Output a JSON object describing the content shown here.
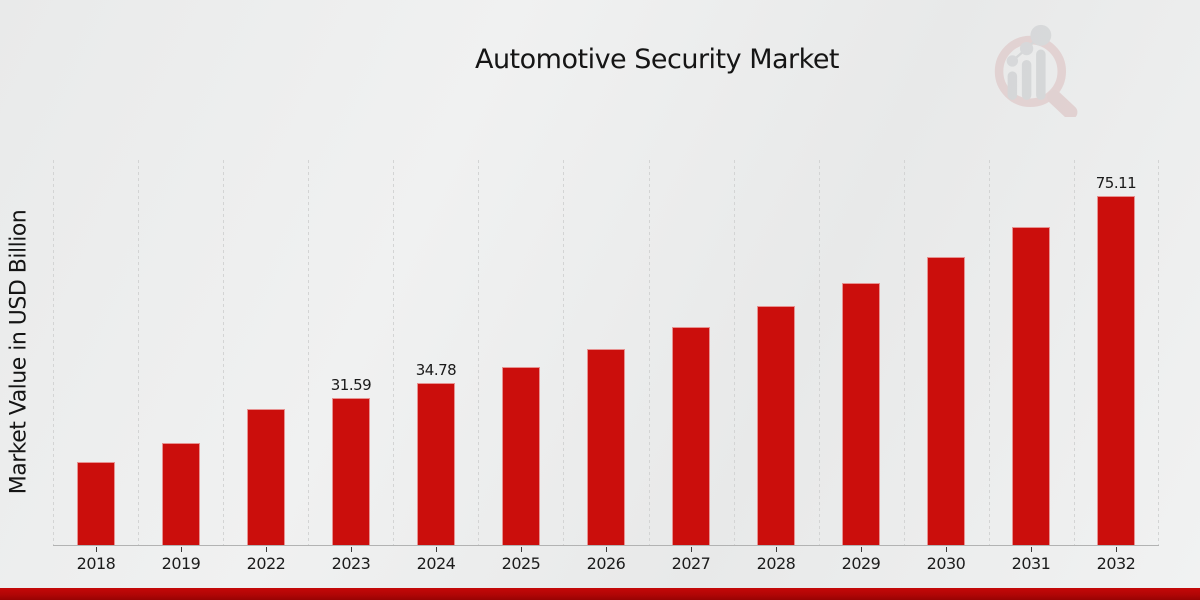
{
  "title": "Automotive Security Market",
  "y_axis_label": "Market Value in USD Billion",
  "branding": {
    "logo_icon": "market-research-future-magnifier-chart-watermark"
  },
  "colors": {
    "bar": "#cb0e0c",
    "bottom_strip": "#b10606",
    "gridline": "#d3d4d4",
    "axis_line": "#b2b3b3",
    "text": "#1a1a1a",
    "background": "#eceded"
  },
  "chart_data": {
    "type": "bar",
    "title": "Automotive Security Market",
    "xlabel": "",
    "ylabel": "Market Value in USD Billion",
    "categories": [
      "2018",
      "2019",
      "2022",
      "2023",
      "2024",
      "2025",
      "2026",
      "2027",
      "2028",
      "2029",
      "2030",
      "2031",
      "2032"
    ],
    "values": [
      17.8,
      21.9,
      29.2,
      31.59,
      34.78,
      38.3,
      42.2,
      46.9,
      51.3,
      56.4,
      62.0,
      68.3,
      75.11
    ],
    "data_labels": [
      "",
      "",
      "",
      "31.59",
      "34.78",
      "",
      "",
      "",
      "",
      "",
      "",
      "",
      "75.11"
    ],
    "unit": "USD Billion",
    "ylim": [
      0,
      83
    ],
    "y_ticks_shown": false,
    "grid": "vertical-dashed",
    "legend": "none",
    "bar_color": "#cb0e0c"
  }
}
